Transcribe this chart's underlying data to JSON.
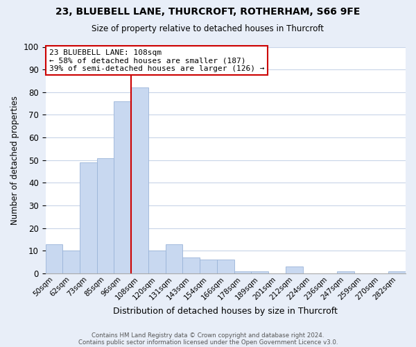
{
  "title1": "23, BLUEBELL LANE, THURCROFT, ROTHERHAM, S66 9FE",
  "title2": "Size of property relative to detached houses in Thurcroft",
  "xlabel": "Distribution of detached houses by size in Thurcroft",
  "ylabel": "Number of detached properties",
  "footer1": "Contains HM Land Registry data © Crown copyright and database right 2024.",
  "footer2": "Contains public sector information licensed under the Open Government Licence v3.0.",
  "bin_labels": [
    "50sqm",
    "62sqm",
    "73sqm",
    "85sqm",
    "96sqm",
    "108sqm",
    "120sqm",
    "131sqm",
    "143sqm",
    "154sqm",
    "166sqm",
    "178sqm",
    "189sqm",
    "201sqm",
    "212sqm",
    "224sqm",
    "236sqm",
    "247sqm",
    "259sqm",
    "270sqm",
    "282sqm"
  ],
  "bar_heights": [
    13,
    10,
    49,
    51,
    76,
    82,
    10,
    13,
    7,
    6,
    6,
    1,
    1,
    0,
    3,
    0,
    0,
    1,
    0,
    0,
    1
  ],
  "bar_color": "#c8d8f0",
  "bar_edge_color": "#9ab4d8",
  "marker_bar_index": 5,
  "marker_color": "#cc0000",
  "annotation_title": "23 BLUEBELL LANE: 108sqm",
  "annotation_line1": "← 58% of detached houses are smaller (187)",
  "annotation_line2": "39% of semi-detached houses are larger (126) →",
  "annotation_box_color": "#ffffff",
  "annotation_box_edge_color": "#cc0000",
  "ylim": [
    0,
    100
  ],
  "yticks": [
    0,
    10,
    20,
    30,
    40,
    50,
    60,
    70,
    80,
    90,
    100
  ],
  "figure_bg_color": "#e8eef8",
  "plot_bg_color": "#ffffff",
  "grid_color": "#c8d4e8"
}
